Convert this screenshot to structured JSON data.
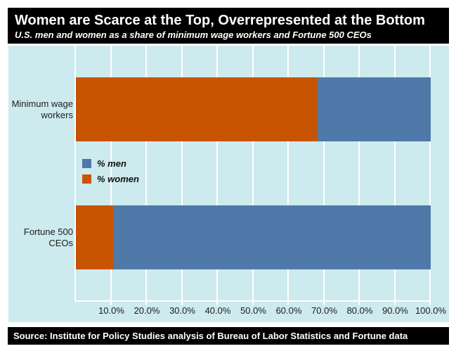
{
  "header": {
    "title": "Women are Scarce at the Top, Overrepresented at the Bottom",
    "subtitle": "U.S. men and women as a share of minimum wage workers and Fortune 500 CEOs"
  },
  "footer": {
    "source": "Source: Institute for Policy Studies analysis of Bureau of Labor Statistics and Fortune data"
  },
  "chart_data": {
    "type": "bar",
    "orientation": "horizontal",
    "stacked": true,
    "title": "Women are Scarce at the Top, Overrepresented at the Bottom",
    "subtitle": "U.S. men and women as a share of minimum wage workers and Fortune 500 CEOs",
    "categories": [
      "Minimum wage workers",
      "Fortune 500 CEOs"
    ],
    "series": [
      {
        "name": "% women",
        "color": "#c85300",
        "values": [
          68,
          10.4
        ]
      },
      {
        "name": "% men",
        "color": "#4e79a8",
        "values": [
          32,
          89.6
        ]
      }
    ],
    "legend": {
      "position": "middle-left",
      "entries": [
        {
          "label": "% men",
          "color": "#4e79a8"
        },
        {
          "label": "% women",
          "color": "#c85300"
        }
      ]
    },
    "x_axis": {
      "min": 0,
      "max": 100,
      "ticks": [
        {
          "value": 10,
          "label": "10.0%"
        },
        {
          "value": 20,
          "label": "20.0%"
        },
        {
          "value": 30,
          "label": "30.0%"
        },
        {
          "value": 40,
          "label": "40.0%"
        },
        {
          "value": 50,
          "label": "50.0%"
        },
        {
          "value": 60,
          "label": "60.0%"
        },
        {
          "value": 70,
          "label": "70.0%"
        },
        {
          "value": 80,
          "label": "80.0%"
        },
        {
          "value": 90,
          "label": "90.0%"
        },
        {
          "value": 100,
          "label": "100.0%"
        }
      ]
    },
    "gridlines": true,
    "colors": {
      "plot_background": "#cdeaee",
      "gridline": "#ffffff",
      "header_background": "#000000",
      "header_text": "#ffffff",
      "men": "#4e79a8",
      "women": "#c85300"
    }
  }
}
